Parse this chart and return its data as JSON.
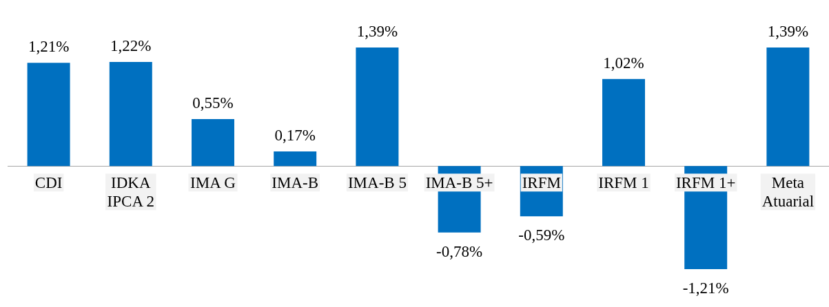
{
  "chart_data": {
    "type": "bar",
    "categories": [
      "CDI",
      "IDKA IPCA 2",
      "IMA G",
      "IMA-B",
      "IMA-B 5",
      "IMA-B 5+",
      "IRFM",
      "IRFM 1",
      "IRFM 1+",
      "Meta Atuarial"
    ],
    "values": [
      1.21,
      1.22,
      0.55,
      0.17,
      1.39,
      -0.78,
      -0.59,
      1.02,
      -1.21,
      1.39
    ],
    "value_labels": [
      "1,21%",
      "1,22%",
      "0,55%",
      "0,17%",
      "1,39%",
      "-0,78%",
      "-0,59%",
      "1,02%",
      "-1,21%",
      "1,39%"
    ],
    "color": "#0070c0"
  }
}
